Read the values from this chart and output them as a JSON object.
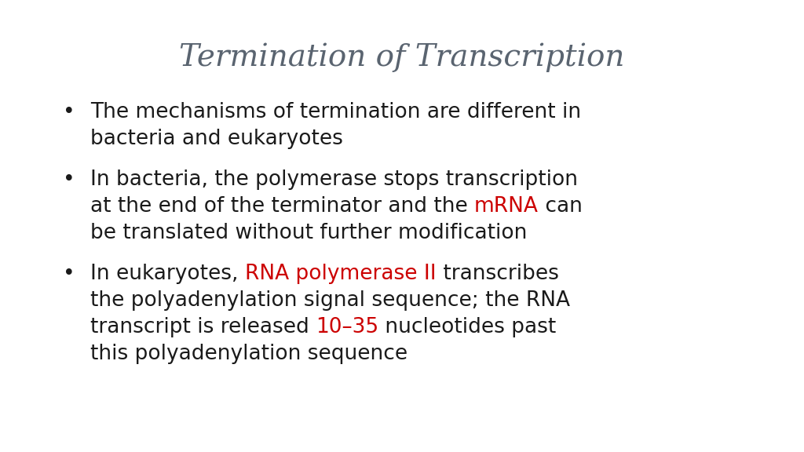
{
  "title": "Termination of Transcription",
  "title_color": "#5a6470",
  "title_fontsize": 28,
  "background_color": "#ffffff",
  "text_color": "#1a1a1a",
  "red_color": "#cc0000",
  "bullet_fontsize": 19,
  "bullets": [
    [
      [
        [
          "The mechanisms of termination are different in",
          "#1a1a1a"
        ]
      ],
      [
        [
          "bacteria and eukaryotes",
          "#1a1a1a"
        ]
      ]
    ],
    [
      [
        [
          "In bacteria, the polymerase stops transcription",
          "#1a1a1a"
        ]
      ],
      [
        [
          "at the end of the terminator and the ",
          "#1a1a1a"
        ],
        [
          "mRNA",
          "#cc0000"
        ],
        [
          " can",
          "#1a1a1a"
        ]
      ],
      [
        [
          "be translated without further modification",
          "#1a1a1a"
        ]
      ]
    ],
    [
      [
        [
          "In eukaryotes, ",
          "#1a1a1a"
        ],
        [
          "RNA polymerase II",
          "#cc0000"
        ],
        [
          " transcribes",
          "#1a1a1a"
        ]
      ],
      [
        [
          "the polyadenylation signal sequence; the RNA",
          "#1a1a1a"
        ]
      ],
      [
        [
          "transcript is released ",
          "#1a1a1a"
        ],
        [
          "10–35",
          "#cc0000"
        ],
        [
          " nucleotides past",
          "#1a1a1a"
        ]
      ],
      [
        [
          "this polyadenylation sequence",
          "#1a1a1a"
        ]
      ]
    ]
  ]
}
